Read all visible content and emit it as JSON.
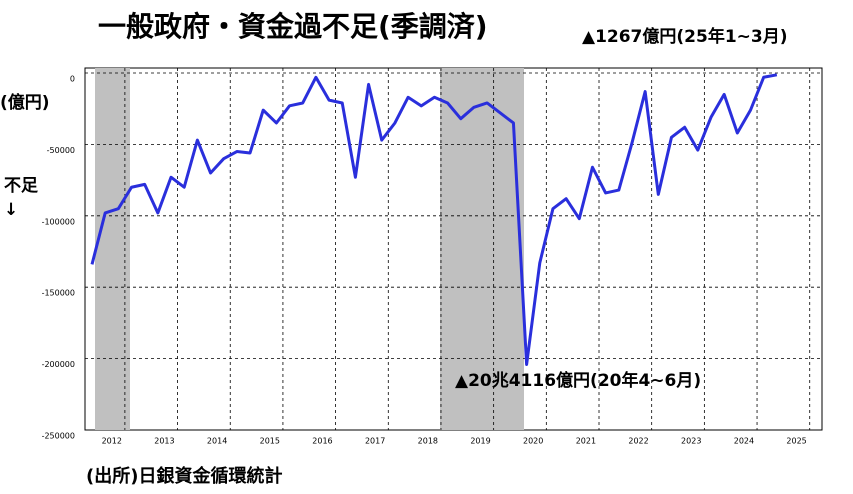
{
  "chart_data": {
    "type": "line",
    "title": "一般政府・資金過不足(季調済)",
    "annotations": [
      "▲1267億円(25年1~3月)",
      "▲20兆4116億円(20年4~6月)"
    ],
    "y_label": "(億円)",
    "y_note": "不足\n↓",
    "source": "(出所)日銀資金循環統計",
    "categories": [
      null,
      "2012",
      null,
      null,
      null,
      "2013",
      null,
      null,
      null,
      "2014",
      null,
      null,
      null,
      "2015",
      null,
      null,
      null,
      "2016",
      null,
      null,
      null,
      "2017",
      null,
      null,
      null,
      "2018",
      null,
      null,
      null,
      "2019",
      null,
      null,
      null,
      "2020",
      null,
      null,
      null,
      "2021",
      null,
      null,
      null,
      "2022",
      null,
      null,
      null,
      "2023",
      null,
      null,
      null,
      "2024",
      null,
      null,
      null,
      "2025"
    ],
    "series": [
      {
        "color": "#2a2fdc",
        "values": [
          -134000,
          -98000,
          -95000,
          -80000,
          -78000,
          -98000,
          -73000,
          -80000,
          -47000,
          -70000,
          -60000,
          -55000,
          -56000,
          -26000,
          -35000,
          -23000,
          -21000,
          -3000,
          -19000,
          -21000,
          -73000,
          -8000,
          -47000,
          -35000,
          -17000,
          -23000,
          -17000,
          -21000,
          -32000,
          -24000,
          -21000,
          -28000,
          -35000,
          -204116,
          -133000,
          -95000,
          -88000,
          -102000,
          -66000,
          -84000,
          -82000,
          -49000,
          -13000,
          -85000,
          -45000,
          -38000,
          -54000,
          -31000,
          -15000,
          -42000,
          -26000,
          -3000,
          -1267,
          null
        ]
      }
    ],
    "ylim": [
      -250000,
      3500
    ],
    "yticks": [
      0,
      -50000,
      -100000,
      -150000,
      -200000,
      -250000
    ],
    "grid": true
  }
}
